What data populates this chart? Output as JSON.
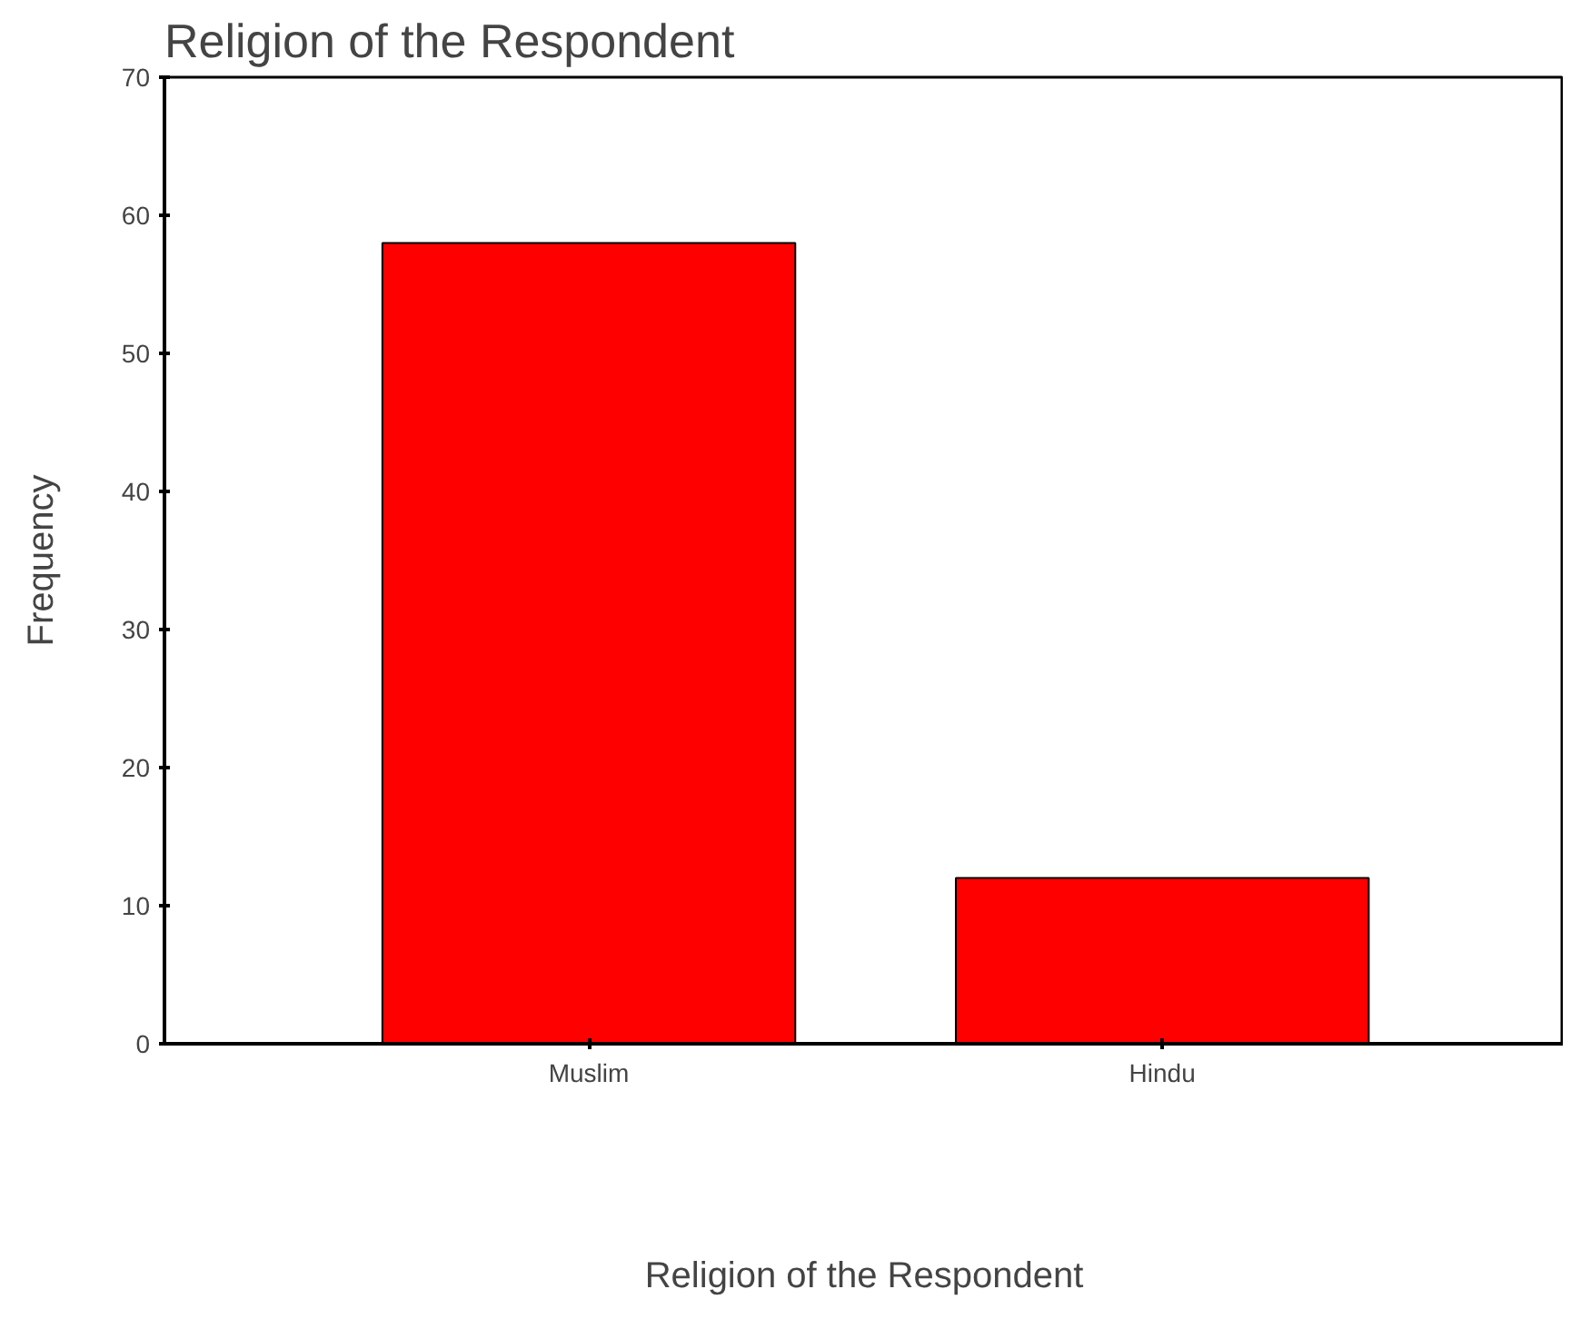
{
  "chart_data": {
    "type": "bar",
    "title": "Religion of the Respondent",
    "xlabel": "Religion of the Respondent",
    "ylabel": "Frequency",
    "categories": [
      "Muslim",
      "Hindu"
    ],
    "values": [
      58,
      12
    ],
    "color": "#ff0000",
    "ylim": [
      0,
      70
    ],
    "yticks": [
      0,
      10,
      20,
      30,
      40,
      50,
      60,
      70
    ],
    "grid": false
  }
}
